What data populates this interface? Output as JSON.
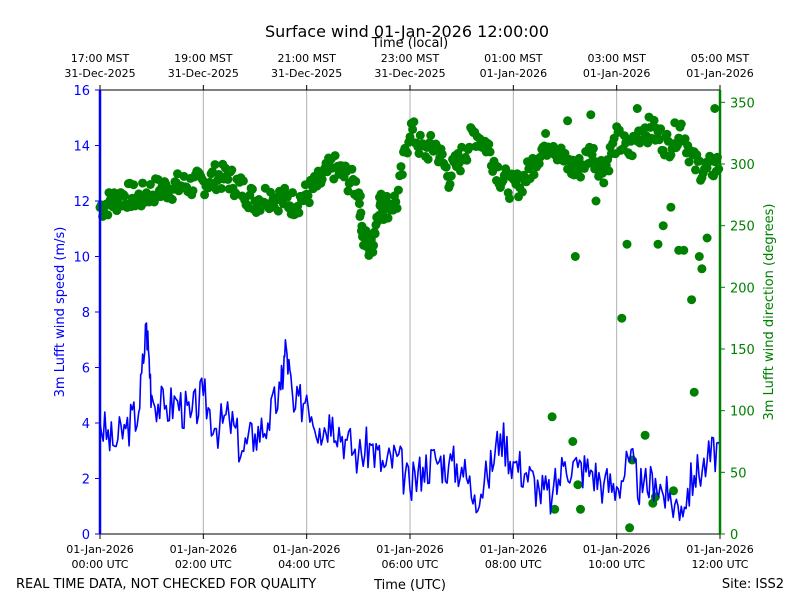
{
  "chart_data": {
    "type": "line",
    "title": "Surface wind 01-Jan-2026 12:00:00",
    "top_axis_label": "Time (local)",
    "top_ticks": [
      {
        "hour": 0,
        "line1": "17:00 MST",
        "line2": "31-Dec-2025"
      },
      {
        "hour": 2,
        "line1": "19:00 MST",
        "line2": "31-Dec-2025"
      },
      {
        "hour": 4,
        "line1": "21:00 MST",
        "line2": "31-Dec-2025"
      },
      {
        "hour": 6,
        "line1": "23:00 MST",
        "line2": "31-Dec-2025"
      },
      {
        "hour": 8,
        "line1": "01:00 MST",
        "line2": "01-Jan-2026"
      },
      {
        "hour": 10,
        "line1": "03:00 MST",
        "line2": "01-Jan-2026"
      },
      {
        "hour": 12,
        "line1": "05:00 MST",
        "line2": "01-Jan-2026"
      }
    ],
    "bottom_ticks": [
      {
        "hour": 0,
        "line1": "01-Jan-2026",
        "line2": "00:00 UTC"
      },
      {
        "hour": 2,
        "line1": "01-Jan-2026",
        "line2": "02:00 UTC"
      },
      {
        "hour": 4,
        "line1": "01-Jan-2026",
        "line2": "04:00 UTC"
      },
      {
        "hour": 6,
        "line1": "01-Jan-2026",
        "line2": "06:00 UTC"
      },
      {
        "hour": 8,
        "line1": "01-Jan-2026",
        "line2": "08:00 UTC"
      },
      {
        "hour": 10,
        "line1": "01-Jan-2026",
        "line2": "10:00 UTC"
      },
      {
        "hour": 12,
        "line1": "01-Jan-2026",
        "line2": "12:00 UTC"
      }
    ],
    "xlabel": "Time (UTC)",
    "xlim_hours": [
      0,
      12
    ],
    "ylabel_left": "3m Lufft wind speed (m/s)",
    "ylim_left": [
      0,
      16
    ],
    "yticks_left": [
      0,
      2,
      4,
      6,
      8,
      10,
      12,
      14,
      16
    ],
    "ylabel_right": "3m Lufft wind direction (degrees)",
    "ylim_right": [
      0,
      360
    ],
    "yticks_right": [
      0,
      50,
      100,
      150,
      200,
      250,
      300,
      350
    ],
    "grid": "vertical",
    "colors": {
      "speed": "#0000ff",
      "direction": "#008000",
      "grid": "#b0b0b0"
    },
    "series": [
      {
        "name": "3m Lufft wind speed",
        "style": "line",
        "axis": "left",
        "hours": [
          0,
          0.25,
          0.5,
          0.75,
          0.9,
          1,
          1.25,
          1.5,
          1.75,
          2,
          2.25,
          2.5,
          2.75,
          3,
          3.25,
          3.5,
          3.6,
          3.75,
          4,
          4.25,
          4.5,
          4.75,
          5,
          5.25,
          5.5,
          5.75,
          6,
          6.25,
          6.5,
          6.75,
          7,
          7.25,
          7.5,
          7.75,
          8,
          8.25,
          8.5,
          8.75,
          9,
          9.25,
          9.5,
          9.75,
          10,
          10.25,
          10.5,
          10.75,
          11,
          11.25,
          11.5,
          11.75,
          12
        ],
        "values": [
          4.0,
          3.2,
          3.8,
          4.4,
          7.6,
          5.0,
          4.5,
          4.8,
          4.2,
          5.0,
          3.8,
          4.2,
          3.0,
          3.6,
          4.0,
          5.2,
          6.8,
          4.4,
          5.0,
          3.8,
          4.2,
          3.4,
          2.8,
          3.2,
          2.4,
          2.8,
          1.6,
          2.4,
          2.7,
          2.5,
          2.4,
          1.4,
          2.0,
          3.6,
          2.6,
          2.2,
          1.6,
          1.3,
          2.6,
          2.4,
          2.3,
          1.8,
          1.7,
          2.6,
          1.5,
          2.0,
          1.2,
          1.0,
          2.1,
          2.6,
          3.2
        ]
      },
      {
        "name": "3m Lufft wind direction",
        "style": "markers",
        "axis": "right",
        "hours": [
          0,
          0.25,
          0.5,
          0.75,
          1,
          1.25,
          1.5,
          1.75,
          2,
          2.25,
          2.5,
          2.75,
          3,
          3.25,
          3.5,
          3.75,
          4,
          4.25,
          4.5,
          4.75,
          5,
          5.1,
          5.25,
          5.4,
          5.5,
          5.75,
          6,
          6.25,
          6.5,
          6.75,
          7,
          7.25,
          7.5,
          7.75,
          8,
          8.25,
          8.5,
          8.75,
          9,
          9.25,
          9.5,
          9.75,
          10,
          10.25,
          10.5,
          10.75,
          11,
          11.25,
          11.5,
          11.75,
          12
        ],
        "values": [
          265,
          270,
          275,
          272,
          278,
          280,
          282,
          283,
          285,
          290,
          288,
          280,
          270,
          275,
          272,
          268,
          275,
          285,
          298,
          290,
          280,
          240,
          230,
          268,
          265,
          270,
          330,
          310,
          315,
          290,
          305,
          325,
          315,
          290,
          280,
          290,
          310,
          320,
          300,
          295,
          310,
          295,
          320,
          310,
          330,
          325,
          315,
          330,
          300,
          295,
          300
        ],
        "scatter_hours": [
          8.75,
          8.8,
          9.15,
          9.25,
          9.3,
          9.5,
          9.7,
          10.1,
          10.2,
          10.3,
          10.55,
          10.7,
          10.8,
          10.9,
          11.05,
          11.2,
          11.45,
          11.6,
          11.75,
          11.9,
          9.2,
          10.25,
          11.5,
          10.75,
          9.6,
          11.1,
          11.65,
          10.4,
          9.05,
          11.3
        ],
        "scatter_values": [
          95,
          20,
          75,
          40,
          20,
          340,
          300,
          175,
          235,
          60,
          80,
          25,
          235,
          250,
          265,
          230,
          190,
          225,
          240,
          345,
          225,
          5,
          115,
          30,
          270,
          35,
          215,
          345,
          335,
          230
        ]
      }
    ],
    "footer_left": "REAL TIME DATA, NOT CHECKED FOR QUALITY",
    "footer_right": "Site: ISS2"
  }
}
